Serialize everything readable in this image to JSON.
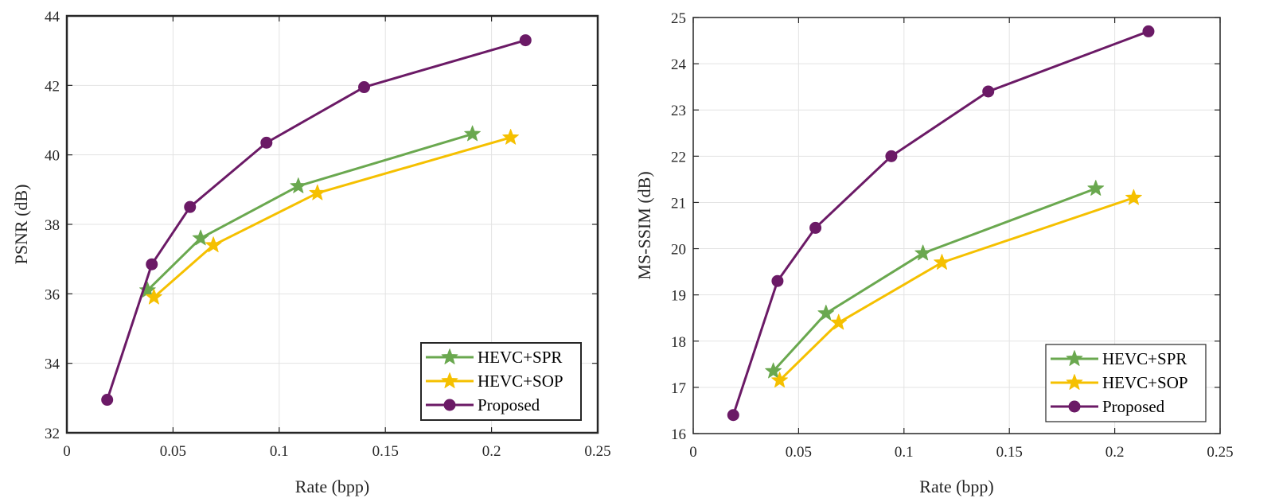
{
  "colors": {
    "HEVC+SPR": "#6aa84f",
    "HEVC+SOP": "#f5c000",
    "Proposed": "#6b1a66",
    "grid": "#e3e3e3",
    "axis": "#262626"
  },
  "chart_data": [
    {
      "type": "line",
      "title": "",
      "xlabel": "Rate (bpp)",
      "ylabel": "PSNR (dB)",
      "xlim": [
        0,
        0.25
      ],
      "ylim": [
        32,
        44
      ],
      "xticks": [
        0,
        0.05,
        0.1,
        0.15,
        0.2,
        0.25
      ],
      "xtick_labels": [
        "0",
        "0.05",
        "0.1",
        "0.15",
        "0.2",
        "0.25"
      ],
      "yticks": [
        32,
        34,
        36,
        38,
        40,
        42,
        44
      ],
      "ytick_labels": [
        "32",
        "34",
        "36",
        "38",
        "40",
        "42",
        "44"
      ],
      "grid": true,
      "legend_position": "bottom-right",
      "series": [
        {
          "name": "HEVC+SPR",
          "marker": "star",
          "x": [
            0.038,
            0.063,
            0.109,
            0.191
          ],
          "y": [
            36.1,
            37.6,
            39.1,
            40.6
          ]
        },
        {
          "name": "HEVC+SOP",
          "marker": "star",
          "x": [
            0.041,
            0.069,
            0.118,
            0.209
          ],
          "y": [
            35.9,
            37.4,
            38.9,
            40.5
          ]
        },
        {
          "name": "Proposed",
          "marker": "circle",
          "x": [
            0.019,
            0.04,
            0.058,
            0.094,
            0.14,
            0.216
          ],
          "y": [
            32.95,
            36.85,
            38.5,
            40.35,
            41.95,
            43.3
          ]
        }
      ]
    },
    {
      "type": "line",
      "title": "",
      "xlabel": "Rate (bpp)",
      "ylabel": "MS-SSIM (dB)",
      "xlim": [
        0,
        0.25
      ],
      "ylim": [
        16,
        25
      ],
      "xticks": [
        0,
        0.05,
        0.1,
        0.15,
        0.2,
        0.25
      ],
      "xtick_labels": [
        "0",
        "0.05",
        "0.1",
        "0.15",
        "0.2",
        "0.25"
      ],
      "yticks": [
        16,
        17,
        18,
        19,
        20,
        21,
        22,
        23,
        24,
        25
      ],
      "ytick_labels": [
        "16",
        "17",
        "18",
        "19",
        "20",
        "21",
        "22",
        "23",
        "24",
        "25"
      ],
      "grid": true,
      "legend_position": "bottom-right",
      "series": [
        {
          "name": "HEVC+SPR",
          "marker": "star",
          "x": [
            0.038,
            0.063,
            0.109,
            0.191
          ],
          "y": [
            17.35,
            18.6,
            19.9,
            21.3
          ]
        },
        {
          "name": "HEVC+SOP",
          "marker": "star",
          "x": [
            0.041,
            0.069,
            0.118,
            0.209
          ],
          "y": [
            17.15,
            18.4,
            19.7,
            21.1
          ]
        },
        {
          "name": "Proposed",
          "marker": "circle",
          "x": [
            0.019,
            0.04,
            0.058,
            0.094,
            0.14,
            0.216
          ],
          "y": [
            16.4,
            19.3,
            20.45,
            22.0,
            23.4,
            24.7
          ]
        }
      ]
    }
  ]
}
